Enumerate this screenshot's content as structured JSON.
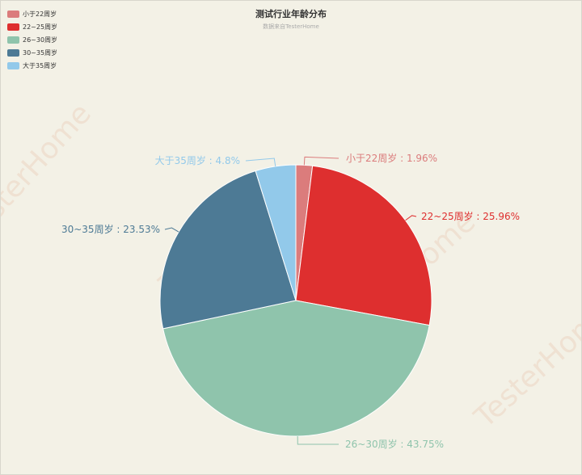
{
  "chart_data": {
    "type": "pie",
    "title": "测试行业年龄分布",
    "subtitle": "数据来自TesterHome",
    "legend_position": "top-left",
    "categories": [
      "小于22周岁",
      "22~25周岁",
      "26~30周岁",
      "30~35周岁",
      "大于35周岁"
    ],
    "values": [
      1.96,
      25.96,
      43.75,
      23.53,
      4.8
    ],
    "labels": [
      "小于22周岁 : 1.96%",
      "22~25周岁 : 25.96%",
      "26~30周岁 : 43.75%",
      "30~35周岁 : 23.53%",
      "大于35周岁 : 4.8%"
    ],
    "colors": [
      "#db7c7c",
      "#de2f2f",
      "#8fc4ac",
      "#4d7a95",
      "#92c9ea"
    ]
  },
  "watermark": {
    "text": "TesterHome",
    "color": "#e6a585"
  }
}
